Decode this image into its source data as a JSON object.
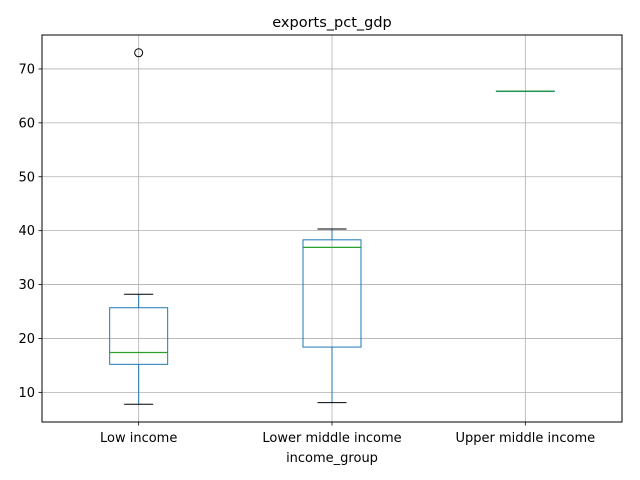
{
  "chart_data": {
    "type": "boxplot",
    "title": "exports_pct_gdp",
    "xlabel": "income_group",
    "ylabel": "",
    "categories": [
      "Low income",
      "Lower middle income",
      "Upper middle income"
    ],
    "ylim": [
      4.5,
      76.3
    ],
    "yticks": [
      10,
      20,
      30,
      40,
      50,
      60,
      70
    ],
    "ytick_labels": [
      "10",
      "20",
      "30",
      "40",
      "50",
      "60",
      "70"
    ],
    "grid": true,
    "legend": "none",
    "boxes": [
      {
        "category": "Low income",
        "whisker_low": 7.8,
        "q1": 15.2,
        "median": 17.4,
        "q3": 25.7,
        "whisker_high": 28.2,
        "outliers": [
          73.0
        ]
      },
      {
        "category": "Lower middle income",
        "whisker_low": 8.1,
        "q1": 18.4,
        "median": 36.9,
        "q3": 38.3,
        "whisker_high": 40.3,
        "outliers": []
      },
      {
        "category": "Upper middle income",
        "whisker_low": 65.9,
        "q1": 65.9,
        "median": 65.9,
        "q3": 65.9,
        "whisker_high": 65.9,
        "outliers": []
      }
    ],
    "colors": {
      "box": "#1f77b4",
      "median": "#2ca02c",
      "whisker_cap": "#000000",
      "grid": "#b0b0b0",
      "outlier": "#000000"
    }
  }
}
